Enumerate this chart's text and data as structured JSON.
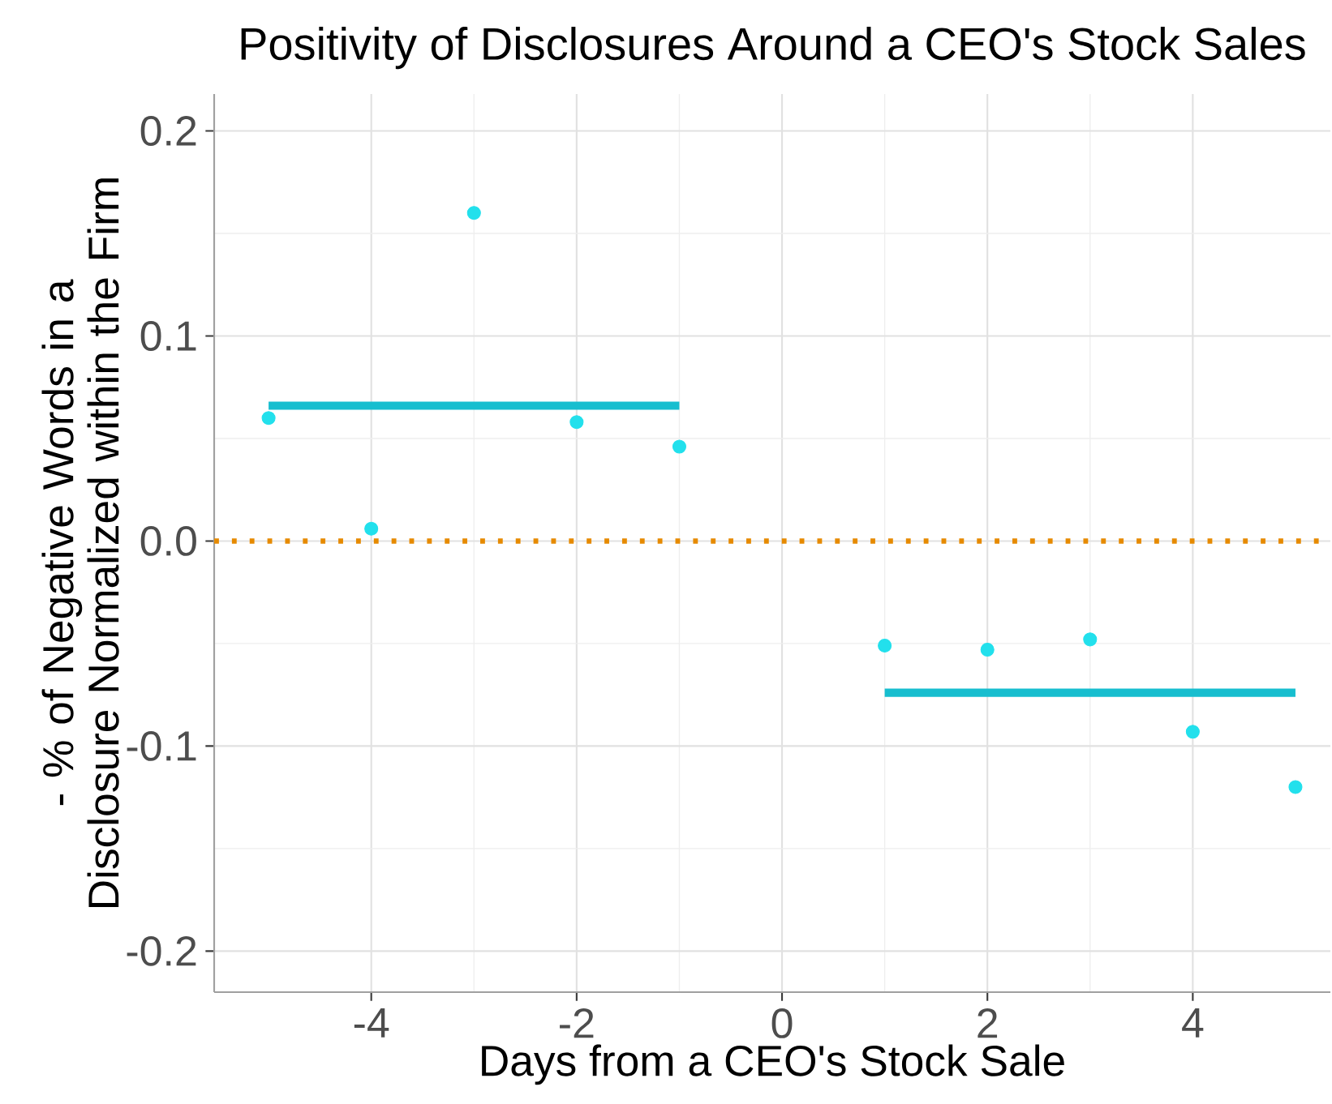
{
  "chart_data": {
    "type": "scatter",
    "title": "Positivity of Disclosures Around a CEO's Stock Sales",
    "xlabel": "Days from a CEO's Stock Sale",
    "ylabel": "- % of Negative Words in a Disclosure Normalized within the Firm",
    "xlim": [
      -5.53,
      5.34
    ],
    "xticks": [
      -4,
      -2,
      0,
      2,
      4
    ],
    "ylim": [
      -0.22,
      0.218
    ],
    "yticks": [
      -0.2,
      -0.1,
      {
        "value": 0,
        "label": "0.0"
      },
      0.1,
      0.2
    ],
    "grid": true,
    "series": [
      {
        "type": "scatter",
        "marker": "circle",
        "color": "#22e0ec",
        "x": [
          -5,
          -4,
          -3,
          -2,
          -1,
          1,
          2,
          3,
          4,
          5
        ],
        "values": [
          0.06,
          0.006,
          0.16,
          0.058,
          0.046,
          -0.051,
          -0.053,
          -0.048,
          -0.093,
          -0.12
        ]
      },
      {
        "type": "line",
        "marker": "none",
        "color": "#17becf",
        "x": [
          -5,
          -1
        ],
        "values": [
          0.066,
          0.066
        ]
      },
      {
        "type": "line",
        "marker": "none",
        "color": "#17becf",
        "x": [
          1,
          5
        ],
        "values": [
          -0.074,
          -0.074
        ]
      }
    ],
    "ref_lines": [
      {
        "axis": "y",
        "value": 0,
        "color": "#e68a00",
        "line_style": "dotted"
      }
    ]
  }
}
